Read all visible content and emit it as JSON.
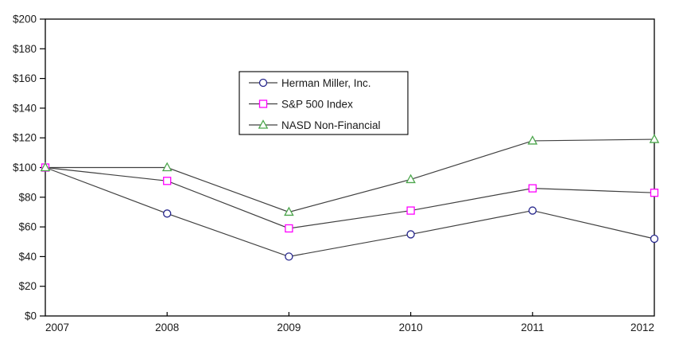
{
  "chart_data": {
    "type": "line",
    "categories": [
      "2007",
      "2008",
      "2009",
      "2010",
      "2011",
      "2012"
    ],
    "series": [
      {
        "name": "Herman Miller, Inc.",
        "marker": "circle",
        "marker_color": "#26268c",
        "values": [
          100,
          69,
          40,
          55,
          71,
          52
        ]
      },
      {
        "name": "S&P 500 Index",
        "marker": "square",
        "marker_color": "#ff00ff",
        "values": [
          100,
          91,
          59,
          71,
          86,
          83
        ]
      },
      {
        "name": "NASD Non-Financial",
        "marker": "triangle",
        "marker_color": "#4ca64c",
        "values": [
          100,
          100,
          70,
          92,
          118,
          119
        ]
      }
    ],
    "title": "",
    "xlabel": "",
    "ylabel": "",
    "ylim": [
      0,
      200
    ],
    "ytick_step": 20,
    "ytick_prefix": "$",
    "grid": false,
    "legend_position": "inside-upper-middle",
    "colors": {
      "line": "#404040",
      "axis": "#000000",
      "tick_text": "#1a1a1a",
      "plot_background": "#ffffff",
      "legend_background": "#ffffff",
      "legend_border": "#000000"
    }
  }
}
